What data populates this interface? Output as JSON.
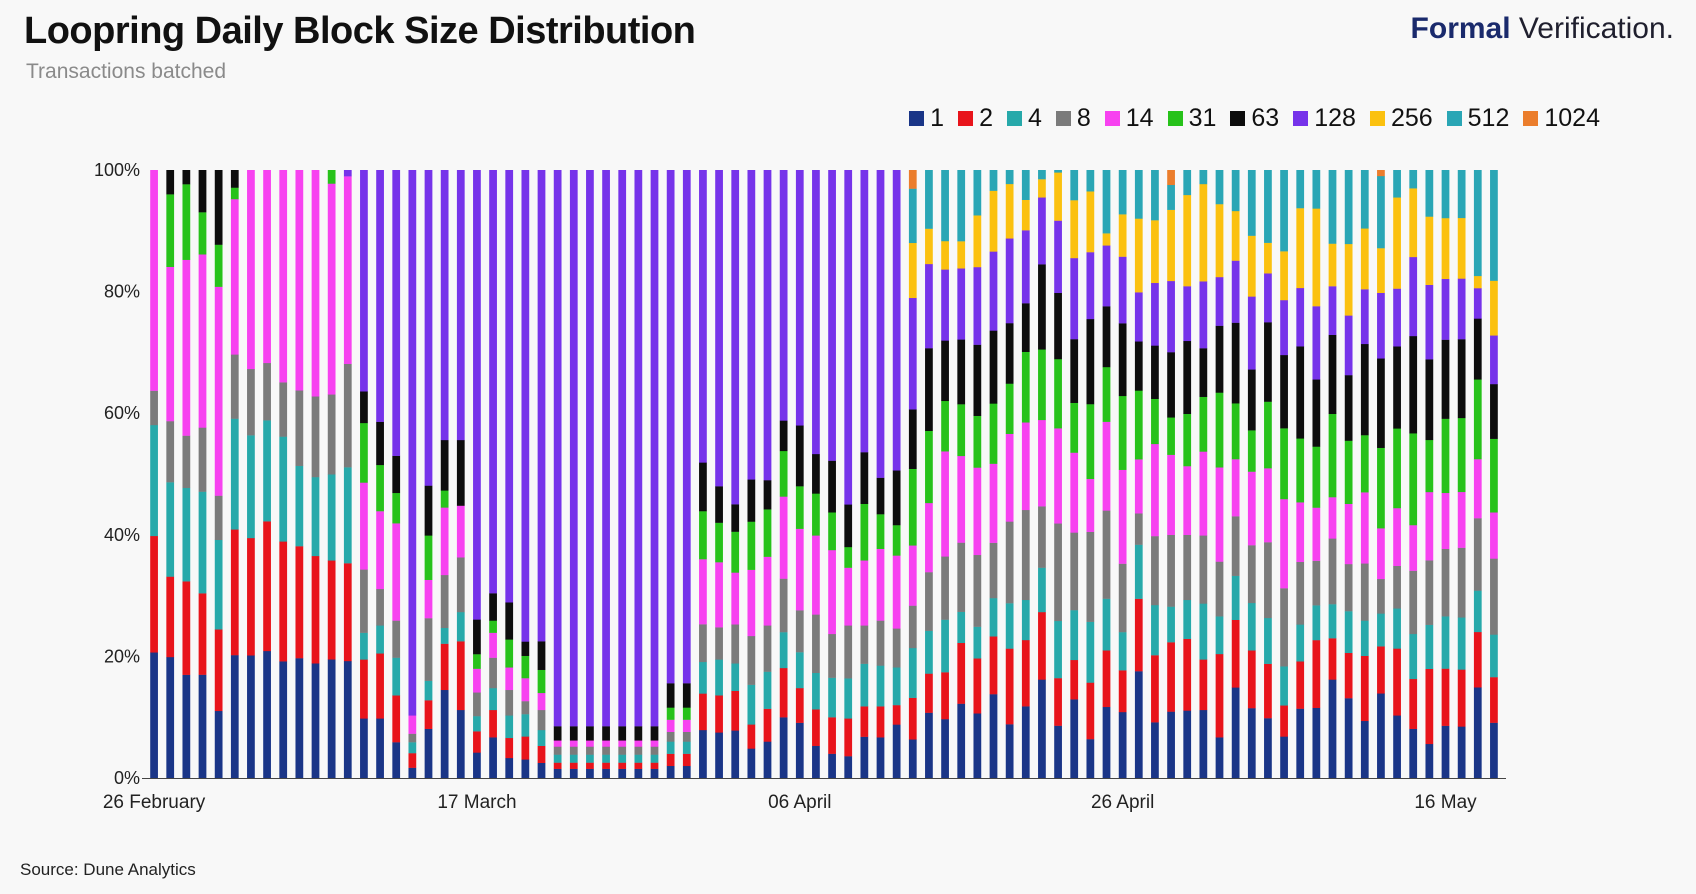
{
  "header": {
    "title": "Loopring Daily Block Size Distribution",
    "subtitle": "Transactions batched"
  },
  "brand": {
    "bold": "Formal",
    "light": " Verification."
  },
  "footer": {
    "source": "Source: Dune Analytics"
  },
  "chart_data": {
    "type": "bar",
    "stacked": true,
    "normalized": true,
    "yticks": [
      "0%",
      "20%",
      "40%",
      "60%",
      "80%",
      "100%"
    ],
    "ylim": [
      0,
      100
    ],
    "xticks": [
      {
        "index": 0,
        "label": "26 February"
      },
      {
        "index": 20,
        "label": "17 March"
      },
      {
        "index": 40,
        "label": "06 April"
      },
      {
        "index": 60,
        "label": "26 April"
      },
      {
        "index": 80,
        "label": "16 May"
      }
    ],
    "legend_position": "top-right",
    "series": [
      {
        "name": "1",
        "color": "#1a3587",
        "values": [
          20.5,
          20.0,
          16.8,
          17.9,
          12.6,
          18.2,
          18.5,
          19.5,
          18.7,
          19.7,
          18.9,
          19.3,
          18.9,
          9.8,
          9.8,
          5.9,
          1.7,
          8.1,
          14.5,
          11.2,
          4.2,
          6.7,
          3.3,
          3.0,
          2.5,
          1.5,
          1.5,
          1.5,
          1.5,
          1.5,
          1.5,
          1.5,
          2.0,
          2.0,
          7.9,
          7.5,
          7.8,
          4.9,
          6.0,
          10.0,
          9.1,
          5.3,
          4.0,
          3.6,
          6.8,
          6.7,
          8.8,
          5.2,
          8.7,
          8.3,
          11.5,
          10.0,
          13.8,
          8.9,
          11.8,
          16.2,
          8.7,
          13.6,
          6.4,
          11.7,
          10.9,
          17.4,
          8.9,
          11.2,
          11.1,
          11.2,
          6.7,
          14.6,
          11.5,
          9.8,
          6.8,
          11.3,
          11.5,
          16.2,
          13.4,
          9.4,
          14.2,
          10.3,
          8.1,
          5.5,
          8.6,
          8.5,
          14.9,
          9.1
        ]
      },
      {
        "name": "2",
        "color": "#e8141b",
        "values": [
          19.0,
          13.3,
          15.2,
          14.1,
          15.3,
          18.6,
          17.7,
          19.9,
          19.2,
          18.4,
          17.7,
          16.1,
          15.8,
          9.7,
          10.7,
          7.7,
          2.4,
          4.7,
          7.6,
          11.3,
          3.5,
          4.5,
          3.3,
          3.7,
          2.8,
          1.0,
          1.0,
          1.0,
          1.0,
          1.0,
          1.0,
          1.0,
          2.0,
          2.0,
          6.0,
          6.1,
          6.5,
          4.0,
          5.4,
          8.1,
          5.7,
          6.0,
          6.0,
          6.2,
          5.0,
          5.1,
          3.2,
          5.6,
          5.2,
          6.6,
          9.4,
          8.5,
          9.5,
          12.5,
          10.9,
          11.1,
          7.9,
          6.8,
          9.3,
          9.3,
          6.9,
          11.8,
          10.7,
          11.7,
          11.8,
          8.3,
          13.7,
          10.9,
          9.5,
          8.9,
          5.1,
          7.7,
          11.1,
          6.8,
          7.6,
          10.7,
          7.9,
          11.0,
          8.2,
          12.1,
          9.4,
          9.4,
          9.1,
          7.5
        ]
      },
      {
        "name": "4",
        "color": "#27a9aa",
        "values": [
          18.1,
          15.6,
          15.2,
          17.6,
          16.8,
          16.4,
          15.5,
          15.5,
          16.8,
          13.2,
          13.0,
          14.0,
          15.5,
          4.4,
          4.6,
          6.2,
          1.8,
          3.2,
          2.6,
          4.8,
          2.5,
          3.6,
          3.7,
          3.6,
          2.6,
          1.3,
          1.3,
          1.3,
          1.3,
          1.3,
          1.3,
          1.3,
          2.0,
          2.0,
          5.2,
          5.9,
          4.5,
          6.6,
          6.1,
          5.9,
          5.9,
          6.0,
          6.5,
          6.6,
          7.0,
          6.7,
          6.2,
          6.7,
          5.7,
          7.4,
          4.8,
          4.9,
          6.3,
          7.5,
          6.6,
          7.3,
          9.5,
          8.6,
          10.0,
          8.5,
          6.3,
          8.8,
          8.0,
          6.0,
          6.4,
          9.2,
          6.2,
          7.1,
          7.8,
          7.5,
          6.4,
          6.0,
          5.7,
          5.6,
          7.0,
          5.8,
          5.5,
          6.6,
          7.4,
          7.1,
          8.6,
          8.6,
          6.8,
          7.0
        ]
      },
      {
        "name": "8",
        "color": "#7b7b7b",
        "values": [
          5.6,
          10.1,
          8.5,
          11.1,
          8.3,
          9.5,
          10.0,
          8.8,
          8.7,
          12.4,
          13.3,
          13.0,
          16.7,
          10.4,
          6.0,
          6.1,
          1.4,
          10.3,
          8.7,
          9.0,
          3.9,
          5.0,
          4.2,
          2.1,
          3.3,
          1.3,
          1.3,
          1.3,
          1.3,
          1.3,
          1.3,
          1.3,
          1.6,
          1.6,
          6.2,
          5.3,
          6.4,
          8.1,
          7.6,
          8.8,
          6.9,
          9.6,
          7.2,
          8.7,
          6.3,
          7.4,
          6.4,
          5.7,
          7.8,
          8.9,
          10.7,
          11.1,
          9.1,
          13.5,
          14.8,
          10.1,
          16.2,
          13.4,
          14.8,
          14.5,
          11.3,
          5.1,
          11.0,
          12.1,
          10.7,
          11.2,
          9.0,
          9.6,
          9.5,
          12.4,
          12.8,
          10.2,
          7.3,
          10.8,
          7.9,
          9.4,
          5.8,
          7.0,
          10.4,
          10.4,
          11.1,
          11.5,
          11.9,
          12.5
        ]
      },
      {
        "name": "14",
        "color": "#f742f0",
        "values": [
          36.0,
          25.5,
          28.6,
          30.0,
          39.2,
          23.0,
          30.0,
          29.6,
          34.0,
          36.2,
          37.3,
          34.3,
          30.3,
          14.3,
          12.8,
          16.0,
          3.0,
          6.3,
          11.1,
          8.5,
          3.9,
          4.1,
          3.7,
          3.7,
          2.8,
          1.0,
          1.0,
          1.0,
          1.0,
          1.0,
          1.0,
          1.0,
          2.0,
          2.0,
          10.7,
          10.7,
          8.5,
          11.0,
          11.3,
          13.5,
          13.4,
          13.0,
          13.8,
          9.5,
          10.7,
          11.8,
          12.0,
          8.1,
          9.2,
          14.8,
          13.4,
          13.5,
          13.0,
          14.5,
          14.4,
          14.2,
          15.8,
          13.8,
          8.7,
          14.6,
          15.5,
          8.8,
          14.7,
          13.5,
          11.3,
          13.8,
          15.5,
          9.2,
          12.1,
          12.1,
          14.6,
          9.7,
          8.7,
          6.8,
          10.1,
          11.7,
          8.5,
          9.5,
          7.5,
          11.0,
          9.2,
          9.2,
          9.7,
          7.6
        ]
      },
      {
        "name": "31",
        "color": "#27c21a",
        "values": [
          0.0,
          12.0,
          12.3,
          7.3,
          7.9,
          1.7,
          0.0,
          0.0,
          0.0,
          0.0,
          0.0,
          2.2,
          0.0,
          9.8,
          7.6,
          5.0,
          0.0,
          7.3,
          2.8,
          0.0,
          2.4,
          2.0,
          4.6,
          3.6,
          3.8,
          0.0,
          0.0,
          0.0,
          0.0,
          0.0,
          0.0,
          0.0,
          2.0,
          2.0,
          7.9,
          6.5,
          6.7,
          8.0,
          7.8,
          7.5,
          7.0,
          6.9,
          6.2,
          3.4,
          9.3,
          5.7,
          5.0,
          10.3,
          9.6,
          7.1,
          8.0,
          8.0,
          9.9,
          8.3,
          11.6,
          11.6,
          11.5,
          8.6,
          12.3,
          9.0,
          12.2,
          11.2,
          7.2,
          6.3,
          8.6,
          9.0,
          12.3,
          9.0,
          6.8,
          10.9,
          11.6,
          10.4,
          10.0,
          13.7,
          10.6,
          9.4,
          13.5,
          13.1,
          15.1,
          8.4,
          12.2,
          12.2,
          13.1,
          12.1
        ]
      },
      {
        "name": "63",
        "color": "#0d0d0d",
        "values": [
          0.0,
          4.0,
          2.3,
          7.3,
          14.0,
          2.6,
          0.0,
          0.0,
          0.0,
          0.0,
          0.0,
          0.0,
          0.0,
          5.2,
          7.1,
          6.1,
          0.0,
          8.2,
          8.3,
          10.8,
          5.7,
          4.5,
          6.1,
          2.3,
          4.7,
          2.3,
          2.3,
          2.3,
          2.3,
          2.3,
          2.3,
          2.3,
          4.0,
          4.0,
          8.0,
          6.0,
          4.5,
          7.0,
          4.8,
          5.0,
          10.0,
          6.5,
          8.5,
          7.0,
          8.5,
          6.0,
          9.0,
          8.0,
          11.0,
          8.5,
          10.0,
          11.0,
          12.0,
          10.0,
          8.0,
          14.0,
          11.0,
          11.0,
          14.0,
          10.0,
          12.0,
          8.0,
          8.5,
          11.0,
          12.0,
          8.0,
          11.0,
          13.0,
          10.0,
          13.0,
          12.0,
          15.0,
          11.0,
          13.0,
          11.0,
          15.0,
          15.0,
          13.5,
          16.0,
          13.0,
          13.0,
          13.0,
          10.0,
          9.0
        ]
      },
      {
        "name": "128",
        "color": "#7633ea",
        "values": [
          0.0,
          0.0,
          0.0,
          0.0,
          0.0,
          0.0,
          0.0,
          0.0,
          0.0,
          0.0,
          0.0,
          0.0,
          1.0,
          36.4,
          41.4,
          47.0,
          89.7,
          51.9,
          44.4,
          44.4,
          74.0,
          69.6,
          71.1,
          76.0,
          77.5,
          90.1,
          90.1,
          90.1,
          90.1,
          90.1,
          90.1,
          90.1,
          84.4,
          84.4,
          48.1,
          52.0,
          54.8,
          51.4,
          51.0,
          41.2,
          42.0,
          46.7,
          47.8,
          55.0,
          46.4,
          50.6,
          49.4,
          15.0,
          11.2,
          10.0,
          11.0,
          12.0,
          13.0,
          14.0,
          12.0,
          11.0,
          12.0,
          14.0,
          11.0,
          10.0,
          11.0,
          8.0,
          10.0,
          12.0,
          9.0,
          11.0,
          8.0,
          10.0,
          12.0,
          8.0,
          9.0,
          9.5,
          12.0,
          8.0,
          10.0,
          9.0,
          11.0,
          9.5,
          13.0,
          12.0,
          10.0,
          10.0,
          5.0,
          8.0
        ]
      },
      {
        "name": "256",
        "color": "#fbc10f",
        "values": [
          0.0,
          0.0,
          0.0,
          0.0,
          0.0,
          0.0,
          0.0,
          0.0,
          0.0,
          0.0,
          0.0,
          0.0,
          0.0,
          0.0,
          0.0,
          0.0,
          0.0,
          0.0,
          0.0,
          0.0,
          0.0,
          0.0,
          0.0,
          0.0,
          0.0,
          0.0,
          0.0,
          0.0,
          0.0,
          0.0,
          0.0,
          0.0,
          0.0,
          0.0,
          0.0,
          0.0,
          0.0,
          0.0,
          0.0,
          0.0,
          0.0,
          0.0,
          0.0,
          0.0,
          0.0,
          0.0,
          0.0,
          7.4,
          4.7,
          4.0,
          4.2,
          8.0,
          10.0,
          9.0,
          5.0,
          3.0,
          8.0,
          10.0,
          10.0,
          2.0,
          7.0,
          12.0,
          10.0,
          12.0,
          15.0,
          16.0,
          12.0,
          8.0,
          10.0,
          5.0,
          8.0,
          13.0,
          16.0,
          7.0,
          12.0,
          10.0,
          7.5,
          15.0,
          11.3,
          11.0,
          10.0,
          10.0,
          2.0,
          9.0
        ]
      },
      {
        "name": "512",
        "color": "#2aa6b5",
        "values": [
          0.0,
          0.0,
          0.0,
          0.0,
          0.0,
          0.0,
          0.0,
          0.0,
          0.0,
          0.0,
          0.0,
          0.0,
          0.0,
          0.0,
          0.0,
          0.0,
          0.0,
          0.0,
          0.0,
          0.0,
          0.0,
          0.0,
          0.0,
          0.0,
          0.0,
          0.0,
          0.0,
          0.0,
          0.0,
          0.0,
          0.0,
          0.0,
          0.0,
          0.0,
          0.0,
          0.0,
          0.0,
          0.0,
          0.0,
          0.0,
          0.0,
          0.0,
          0.0,
          0.0,
          0.0,
          0.0,
          0.0,
          7.3,
          7.8,
          10.0,
          11.0,
          7.0,
          3.4,
          2.3,
          4.9,
          1.5,
          0.4,
          5.2,
          3.5,
          10.4,
          7.3,
          7.9,
          8.0,
          4.2,
          4.1,
          2.3,
          5.6,
          6.6,
          10.8,
          11.9,
          13.3,
          6.2,
          6.3,
          12.1,
          12.4,
          9.6,
          12.1,
          4.5,
          3.0,
          7.5,
          7.9,
          7.9,
          17.4,
          18.2
        ]
      },
      {
        "name": "1024",
        "color": "#eb7d2c",
        "values": [
          0,
          0,
          0,
          0,
          0,
          0,
          0,
          0,
          0,
          0,
          0,
          0,
          0,
          0,
          0,
          0,
          0,
          0,
          0,
          0,
          0,
          0,
          0,
          0,
          0,
          0,
          0,
          0,
          0,
          0,
          0,
          0,
          0,
          0,
          0,
          0,
          0,
          0,
          0,
          0,
          0,
          0,
          0,
          0,
          0,
          0,
          0,
          2.5,
          0,
          0,
          0,
          0,
          0,
          0,
          0,
          0,
          0,
          0,
          0,
          0,
          0,
          0,
          0,
          2.5,
          0,
          0,
          0,
          0,
          0,
          0,
          0,
          0,
          0,
          0,
          0,
          0,
          1.0,
          0,
          0,
          0,
          0,
          0,
          0,
          0
        ]
      }
    ]
  }
}
